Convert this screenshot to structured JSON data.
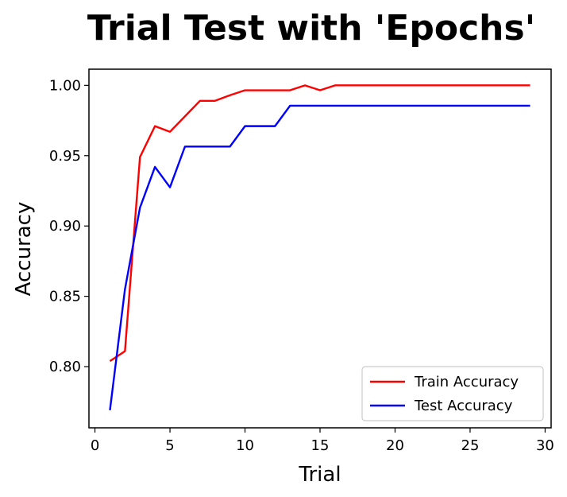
{
  "chart_data": {
    "type": "line",
    "title": "Trial Test with 'Epochs'",
    "xlabel": "Trial",
    "ylabel": "Accuracy",
    "xlim": [
      -0.4,
      30.4
    ],
    "ylim": [
      0.7565,
      1.0115
    ],
    "xticks": [
      0,
      5,
      10,
      15,
      20,
      25,
      30
    ],
    "yticks": [
      0.8,
      0.85,
      0.9,
      0.95,
      1.0
    ],
    "ytick_labels": [
      "0.80",
      "0.85",
      "0.90",
      "0.95",
      "1.00"
    ],
    "grid": false,
    "legend": {
      "position": "bottom-right",
      "entries": [
        "Train Accuracy",
        "Test Accuracy"
      ]
    },
    "x": [
      1,
      2,
      3,
      4,
      5,
      6,
      7,
      8,
      9,
      10,
      11,
      12,
      13,
      14,
      15,
      16,
      17,
      18,
      19,
      20,
      21,
      22,
      23,
      24,
      25,
      26,
      27,
      28,
      29
    ],
    "series": [
      {
        "name": "Train Accuracy",
        "color": "#ff0000",
        "values": [
          0.8039,
          0.811,
          0.949,
          0.971,
          0.967,
          0.978,
          0.989,
          0.989,
          0.993,
          0.9965,
          0.9965,
          0.9965,
          0.9965,
          1.0,
          0.9965,
          1.0,
          1.0,
          1.0,
          1.0,
          1.0,
          1.0,
          1.0,
          1.0,
          1.0,
          1.0,
          1.0,
          1.0,
          1.0,
          1.0
        ]
      },
      {
        "name": "Test Accuracy",
        "color": "#0000ff",
        "values": [
          0.769,
          0.855,
          0.913,
          0.942,
          0.9275,
          0.9565,
          0.9565,
          0.9565,
          0.9565,
          0.971,
          0.971,
          0.971,
          0.9855,
          0.9855,
          0.9855,
          0.9855,
          0.9855,
          0.9855,
          0.9855,
          0.9855,
          0.9855,
          0.9855,
          0.9855,
          0.9855,
          0.9855,
          0.9855,
          0.9855,
          0.9855,
          0.9855
        ]
      }
    ]
  }
}
